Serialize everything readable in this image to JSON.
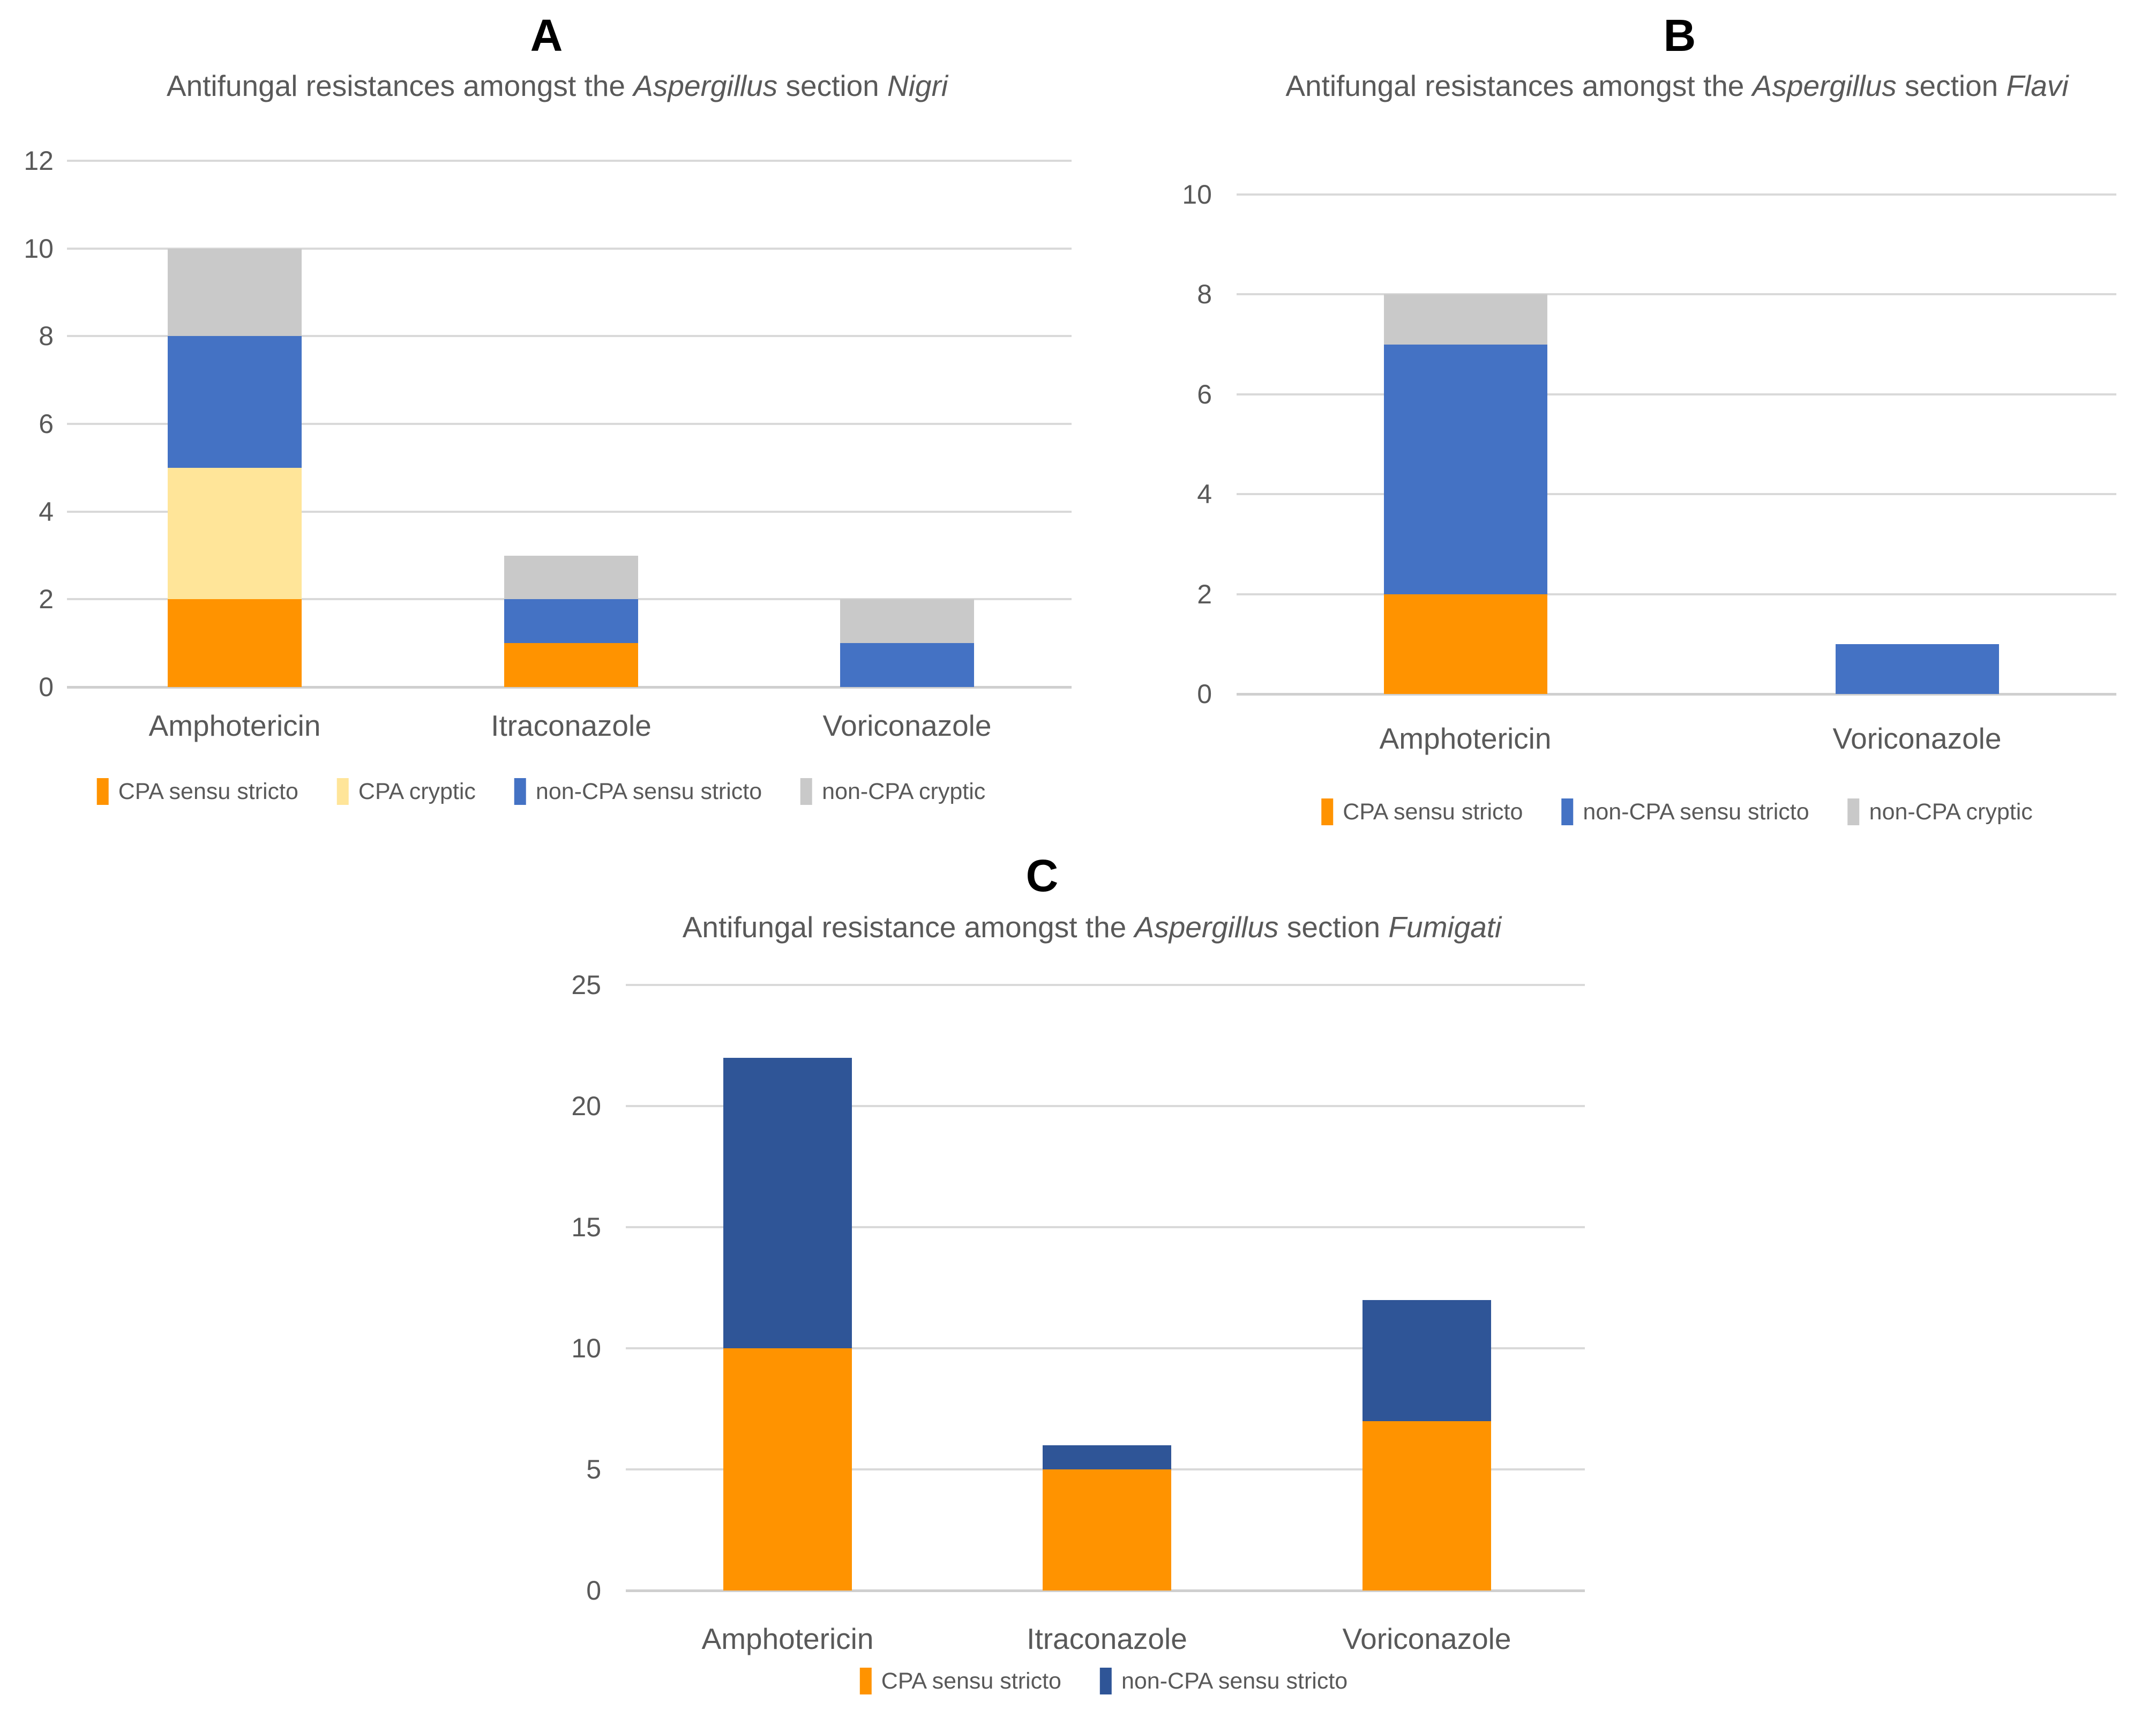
{
  "figure": {
    "background": "#ffffff",
    "text_color": "#595959",
    "gridline_color": "#d9d9d9"
  },
  "chart_data": [
    {
      "id": "A",
      "panel_label": "A",
      "type": "bar",
      "stacked": true,
      "title": "Antifungal resistances amongst the Aspergillus section Nigri",
      "title_runs": [
        {
          "text": "Antifungal resistances amongst the ",
          "italic": false
        },
        {
          "text": "Aspergillus",
          "italic": true
        },
        {
          "text": " section ",
          "italic": false
        },
        {
          "text": "Nigri",
          "italic": true
        }
      ],
      "categories": [
        "Amphotericin",
        "Itraconazole",
        "Voriconazole"
      ],
      "series": [
        {
          "name": "CPA sensu stricto",
          "color": "#FF9300",
          "values": [
            2,
            1,
            0
          ]
        },
        {
          "name": "CPA cryptic",
          "color": "#FFE599",
          "values": [
            3,
            0,
            0
          ]
        },
        {
          "name": "non-CPA sensu stricto",
          "color": "#4472C4",
          "values": [
            3,
            1,
            1
          ]
        },
        {
          "name": "non-CPA cryptic",
          "color": "#C9C9C9",
          "values": [
            2,
            1,
            1
          ]
        }
      ],
      "ylim": [
        0,
        12
      ],
      "yticks": [
        0,
        2,
        4,
        6,
        8,
        10,
        12
      ],
      "grid": true,
      "legend_position": "bottom"
    },
    {
      "id": "B",
      "panel_label": "B",
      "type": "bar",
      "stacked": true,
      "title": "Antifungal resistances amongst the Aspergillus section Flavi",
      "title_runs": [
        {
          "text": "Antifungal resistances amongst the ",
          "italic": false
        },
        {
          "text": "Aspergillus",
          "italic": true
        },
        {
          "text": " section ",
          "italic": false
        },
        {
          "text": "Flavi",
          "italic": true
        }
      ],
      "categories": [
        "Amphotericin",
        "Voriconazole"
      ],
      "series": [
        {
          "name": "CPA sensu stricto",
          "color": "#FF9300",
          "values": [
            2,
            0
          ]
        },
        {
          "name": "non-CPA sensu stricto",
          "color": "#4472C4",
          "values": [
            5,
            1
          ]
        },
        {
          "name": "non-CPA cryptic",
          "color": "#C9C9C9",
          "values": [
            1,
            0
          ]
        }
      ],
      "ylim": [
        0,
        10
      ],
      "yticks": [
        0,
        2,
        4,
        6,
        8,
        10
      ],
      "grid": true,
      "legend_position": "bottom"
    },
    {
      "id": "C",
      "panel_label": "C",
      "type": "bar",
      "stacked": true,
      "title": "Antifungal resistance amongst the Aspergillus section Fumigati",
      "title_runs": [
        {
          "text": "Antifungal resistance amongst the ",
          "italic": false
        },
        {
          "text": "Aspergillus",
          "italic": true
        },
        {
          "text": " section ",
          "italic": false
        },
        {
          "text": "Fumigati",
          "italic": true
        }
      ],
      "categories": [
        "Amphotericin",
        "Itraconazole",
        "Voriconazole"
      ],
      "series": [
        {
          "name": "CPA sensu stricto",
          "color": "#FF9300",
          "values": [
            10,
            5,
            7
          ]
        },
        {
          "name": "non-CPA sensu stricto",
          "color": "#2F5597",
          "values": [
            12,
            1,
            5
          ]
        }
      ],
      "ylim": [
        0,
        25
      ],
      "yticks": [
        0,
        5,
        10,
        15,
        20,
        25
      ],
      "grid": true,
      "legend_position": "bottom"
    }
  ]
}
